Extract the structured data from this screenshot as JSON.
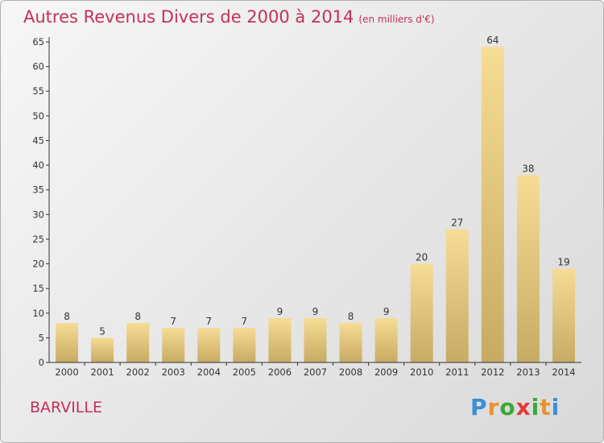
{
  "title": "Autres Revenus Divers de 2000 à 2014",
  "unit": "(en milliers d'€)",
  "commune": "BARVILLE",
  "logo": {
    "letters": [
      "P",
      "r",
      "o",
      "x",
      "i",
      "t",
      "i"
    ],
    "colors": [
      "#3a8fd6",
      "#e6942a",
      "#3aa838",
      "#e13a3a",
      "#3aa838",
      "#e6942a",
      "#3a8fd6"
    ]
  },
  "colors": {
    "title": "#c3315a",
    "bar_top": "#f7dc95",
    "bar_bottom": "#c7ab63",
    "axis": "#333333"
  },
  "chart_data": {
    "type": "bar",
    "title": "Autres Revenus Divers de 2000 à 2014",
    "categories": [
      "2000",
      "2001",
      "2002",
      "2003",
      "2004",
      "2005",
      "2006",
      "2007",
      "2008",
      "2009",
      "2010",
      "2011",
      "2012",
      "2013",
      "2014"
    ],
    "values": [
      8,
      5,
      8,
      7,
      7,
      7,
      9,
      9,
      8,
      9,
      20,
      27,
      64,
      38,
      19
    ],
    "ylim": [
      0,
      65
    ],
    "yticks": [
      0,
      5,
      10,
      15,
      20,
      25,
      30,
      35,
      40,
      45,
      50,
      55,
      60,
      65
    ],
    "grid": false,
    "legend": "none"
  }
}
